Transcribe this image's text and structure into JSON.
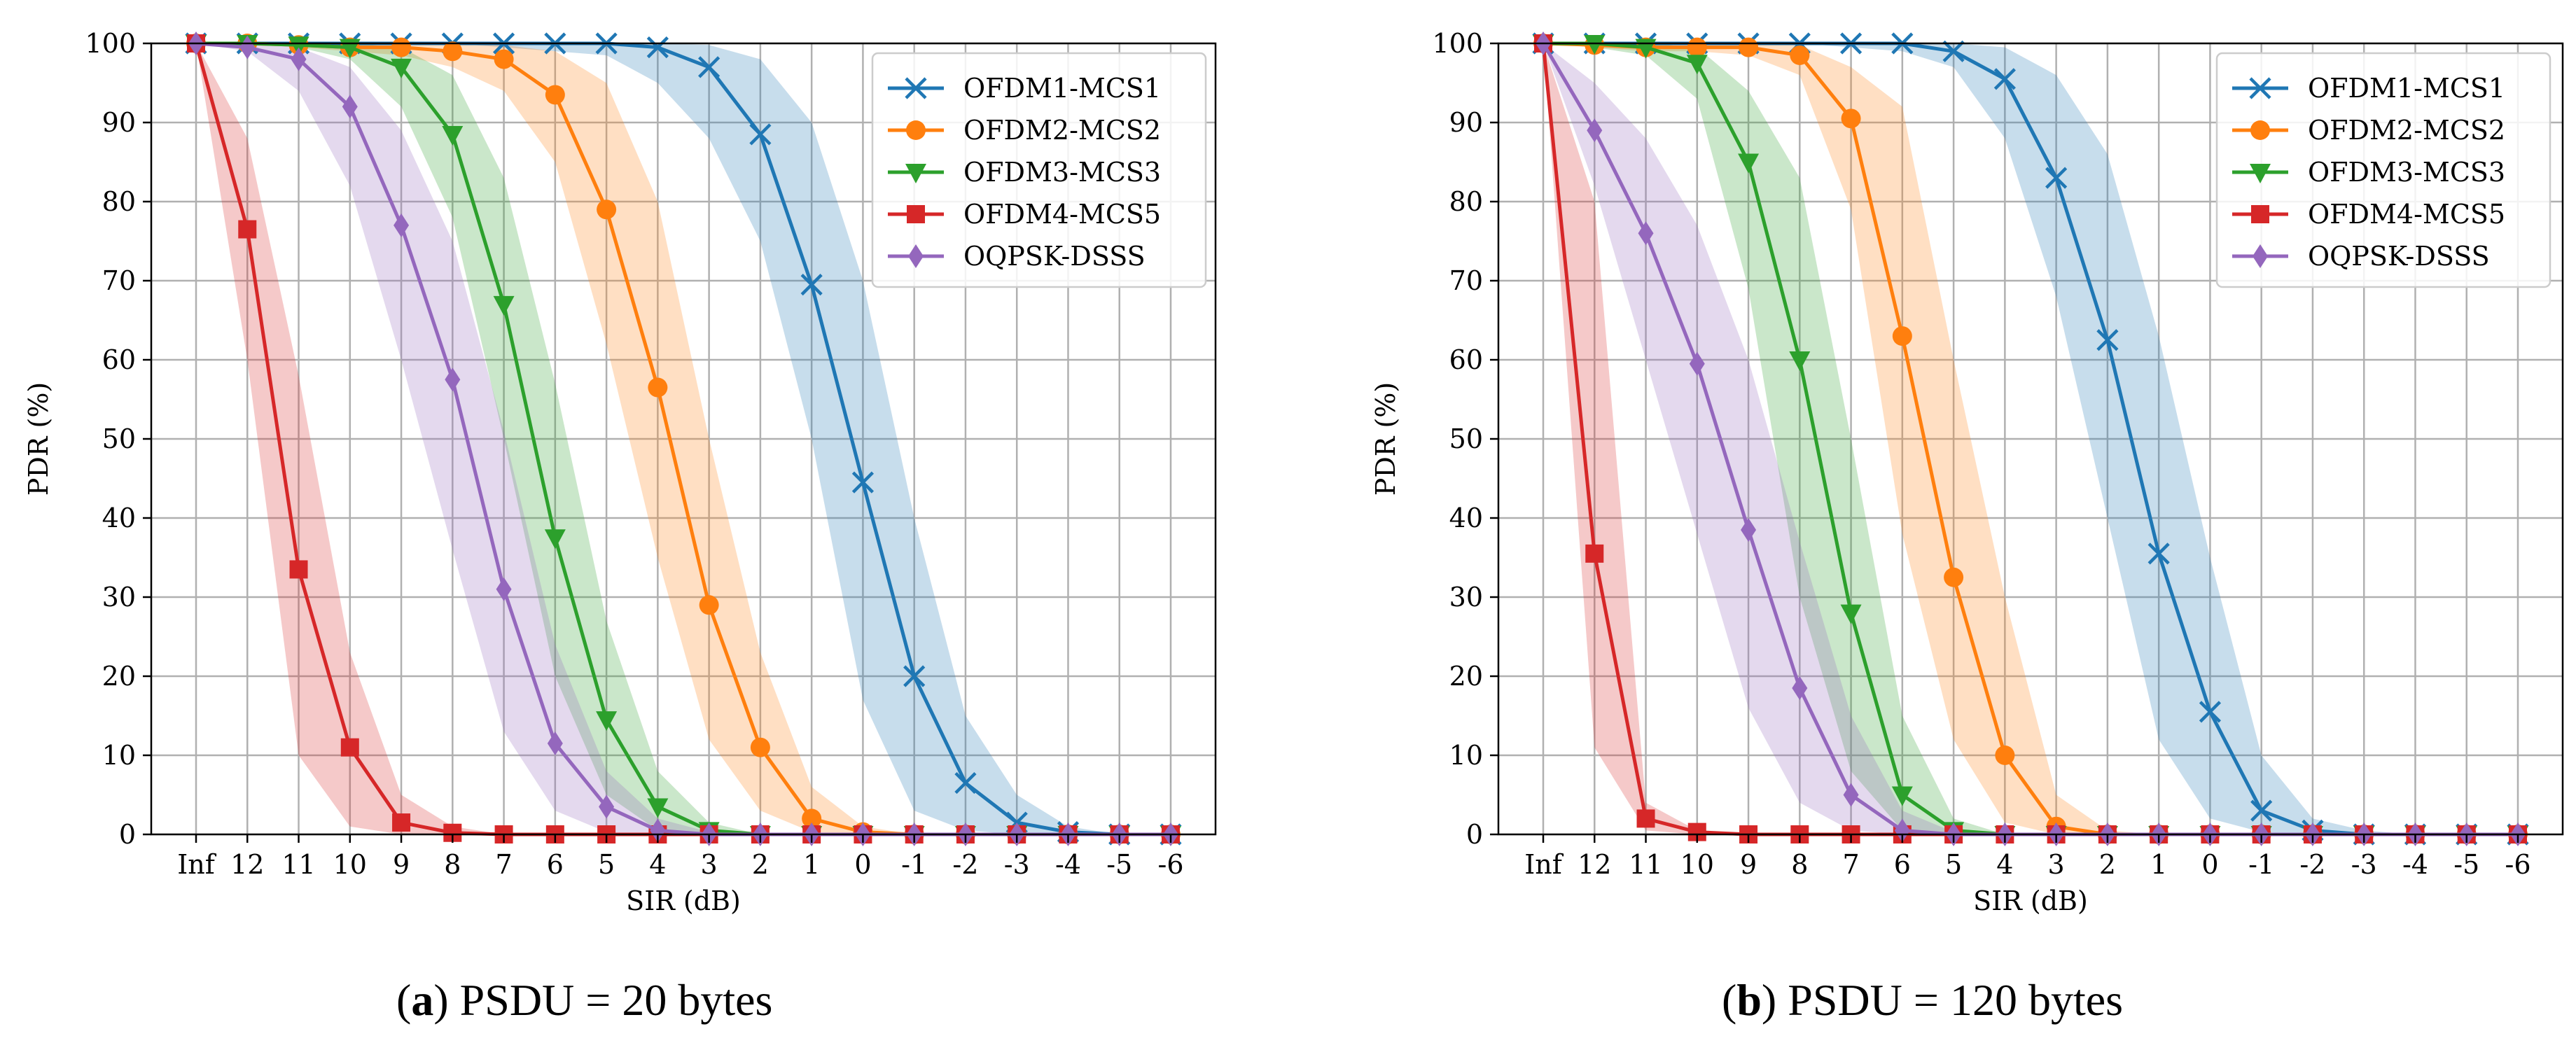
{
  "captions": [
    {
      "letter": "a",
      "text": " PSDU = 20 bytes"
    },
    {
      "letter": "b",
      "text": " PSDU = 120 bytes"
    }
  ],
  "colors": {
    "OFDM1-MCS1": "#1f77b4",
    "OFDM2-MCS2": "#ff7f0e",
    "OFDM3-MCS3": "#2ca02c",
    "OFDM4-MCS5": "#d62728",
    "OQPSK-DSSS": "#9467bd"
  },
  "chart_data": [
    {
      "type": "line",
      "xlabel": "SIR (dB)",
      "ylabel": "PDR (%)",
      "ylim": [
        0,
        100
      ],
      "yticks": [
        0,
        10,
        20,
        30,
        40,
        50,
        60,
        70,
        80,
        90,
        100
      ],
      "categories": [
        "Inf",
        "12",
        "11",
        "10",
        "9",
        "8",
        "7",
        "6",
        "5",
        "4",
        "3",
        "2",
        "1",
        "0",
        "-1",
        "-2",
        "-3",
        "-4",
        "-5",
        "-6"
      ],
      "grid": true,
      "legend_position": "top-right",
      "series": [
        {
          "name": "OFDM1-MCS1",
          "marker": "x",
          "values": [
            100,
            100,
            100,
            100,
            100,
            100,
            100,
            100,
            100,
            99.5,
            97,
            88.5,
            69.5,
            44.5,
            20,
            6.5,
            1.5,
            0.3,
            0,
            0
          ],
          "lower": [
            100,
            100,
            100,
            100,
            100,
            100,
            99.5,
            99,
            98.5,
            95,
            88,
            75,
            50,
            17,
            3,
            0.5,
            0,
            0,
            0,
            0
          ],
          "upper": [
            100,
            100,
            100,
            100,
            100,
            100,
            100,
            100,
            100,
            100,
            99.8,
            98,
            90,
            70,
            40,
            15,
            5,
            1,
            0,
            0
          ]
        },
        {
          "name": "OFDM2-MCS2",
          "marker": "o",
          "values": [
            100,
            100,
            99.8,
            99.5,
            99.5,
            99,
            98,
            93.5,
            79,
            56.5,
            29,
            11,
            2,
            0.3,
            0,
            0,
            0,
            0,
            0,
            0
          ],
          "lower": [
            100,
            100,
            99.5,
            99,
            98.5,
            97,
            94,
            85,
            62,
            35,
            12,
            3,
            0.3,
            0,
            0,
            0,
            0,
            0,
            0,
            0
          ],
          "upper": [
            100,
            100,
            100,
            100,
            100,
            100,
            99.8,
            99,
            95,
            80,
            50,
            23,
            6,
            1,
            0,
            0,
            0,
            0,
            0,
            0
          ]
        },
        {
          "name": "OFDM3-MCS3",
          "marker": "v",
          "values": [
            100,
            100,
            99.8,
            99.5,
            97,
            88.5,
            67,
            37.5,
            14.5,
            3.5,
            0.5,
            0,
            0,
            0,
            0,
            0,
            0,
            0,
            0,
            0
          ],
          "lower": [
            100,
            100,
            99.5,
            98,
            92,
            78,
            50,
            20,
            5,
            0.5,
            0,
            0,
            0,
            0,
            0,
            0,
            0,
            0,
            0,
            0
          ],
          "upper": [
            100,
            100,
            100,
            100,
            99.5,
            96,
            83,
            57,
            27,
            8,
            1.5,
            0,
            0,
            0,
            0,
            0,
            0,
            0,
            0,
            0
          ]
        },
        {
          "name": "OFDM4-MCS5",
          "marker": "s",
          "values": [
            100,
            76.5,
            33.5,
            11,
            1.5,
            0.2,
            0,
            0,
            0,
            0,
            0,
            0,
            0,
            0,
            0,
            0,
            0,
            0,
            0,
            0
          ],
          "lower": [
            100,
            60,
            10,
            1,
            0,
            0,
            0,
            0,
            0,
            0,
            0,
            0,
            0,
            0,
            0,
            0,
            0,
            0,
            0,
            0
          ],
          "upper": [
            100,
            88,
            58,
            23,
            5,
            1,
            0,
            0,
            0,
            0,
            0,
            0,
            0,
            0,
            0,
            0,
            0,
            0,
            0,
            0
          ]
        },
        {
          "name": "OQPSK-DSSS",
          "marker": "d",
          "values": [
            100,
            99.5,
            98,
            92,
            77,
            57.5,
            31,
            11.5,
            3.5,
            0.5,
            0,
            0,
            0,
            0,
            0,
            0,
            0,
            0,
            0,
            0
          ],
          "lower": [
            100,
            99,
            94,
            82,
            60,
            36,
            13,
            3,
            0.3,
            0,
            0,
            0,
            0,
            0,
            0,
            0,
            0,
            0,
            0,
            0
          ],
          "upper": [
            100,
            100,
            99.5,
            97,
            89,
            75,
            51,
            24,
            8,
            2,
            0.3,
            0,
            0,
            0,
            0,
            0,
            0,
            0,
            0,
            0
          ]
        }
      ]
    },
    {
      "type": "line",
      "xlabel": "SIR (dB)",
      "ylabel": "PDR (%)",
      "ylim": [
        0,
        100
      ],
      "yticks": [
        0,
        10,
        20,
        30,
        40,
        50,
        60,
        70,
        80,
        90,
        100
      ],
      "categories": [
        "Inf",
        "12",
        "11",
        "10",
        "9",
        "8",
        "7",
        "6",
        "5",
        "4",
        "3",
        "2",
        "1",
        "0",
        "-1",
        "-2",
        "-3",
        "-4",
        "-5",
        "-6"
      ],
      "grid": true,
      "legend_position": "top-right",
      "series": [
        {
          "name": "OFDM1-MCS1",
          "marker": "x",
          "values": [
            100,
            100,
            100,
            100,
            100,
            100,
            100,
            100,
            99,
            95.5,
            83,
            62.5,
            35.5,
            15.5,
            3,
            0.5,
            0,
            0,
            0,
            0
          ],
          "lower": [
            100,
            100,
            100,
            100,
            100,
            100,
            99.5,
            99,
            97,
            88,
            68,
            40,
            12,
            2,
            0.3,
            0,
            0,
            0,
            0,
            0
          ],
          "upper": [
            100,
            100,
            100,
            100,
            100,
            100,
            100,
            100,
            100,
            99.5,
            96,
            86,
            63,
            35,
            10,
            2,
            0.5,
            0,
            0,
            0
          ]
        },
        {
          "name": "OFDM2-MCS2",
          "marker": "o",
          "values": [
            100,
            99.8,
            99.5,
            99.5,
            99.5,
            98.5,
            90.5,
            63,
            32.5,
            10,
            1,
            0,
            0,
            0,
            0,
            0,
            0,
            0,
            0,
            0
          ],
          "lower": [
            100,
            99.5,
            99,
            99,
            98.5,
            96,
            79,
            38,
            12,
            1.5,
            0,
            0,
            0,
            0,
            0,
            0,
            0,
            0,
            0,
            0
          ],
          "upper": [
            100,
            100,
            100,
            100,
            100,
            99.8,
            97,
            92,
            60,
            30,
            5,
            0.5,
            0,
            0,
            0,
            0,
            0,
            0,
            0,
            0
          ]
        },
        {
          "name": "OFDM3-MCS3",
          "marker": "v",
          "values": [
            100,
            100,
            99.5,
            97.5,
            85,
            60,
            28,
            5,
            0.5,
            0,
            0,
            0,
            0,
            0,
            0,
            0,
            0,
            0,
            0,
            0
          ],
          "lower": [
            100,
            99.5,
            98.5,
            93,
            69,
            30,
            8,
            0.5,
            0,
            0,
            0,
            0,
            0,
            0,
            0,
            0,
            0,
            0,
            0,
            0
          ],
          "upper": [
            100,
            100,
            100,
            99.5,
            94,
            83,
            50,
            15,
            2,
            0,
            0,
            0,
            0,
            0,
            0,
            0,
            0,
            0,
            0,
            0
          ]
        },
        {
          "name": "OFDM4-MCS5",
          "marker": "s",
          "values": [
            100,
            35.5,
            2,
            0.3,
            0,
            0,
            0,
            0,
            0,
            0,
            0,
            0,
            0,
            0,
            0,
            0,
            0,
            0,
            0,
            0
          ],
          "lower": [
            100,
            11,
            0.5,
            0,
            0,
            0,
            0,
            0,
            0,
            0,
            0,
            0,
            0,
            0,
            0,
            0,
            0,
            0,
            0,
            0
          ],
          "upper": [
            100,
            80,
            4,
            0.5,
            0,
            0,
            0,
            0,
            0,
            0,
            0,
            0,
            0,
            0,
            0,
            0,
            0,
            0,
            0,
            0
          ]
        },
        {
          "name": "OQPSK-DSSS",
          "marker": "d",
          "values": [
            100,
            89,
            76,
            59.5,
            38.5,
            18.5,
            5,
            0.5,
            0,
            0,
            0,
            0,
            0,
            0,
            0,
            0,
            0,
            0,
            0,
            0
          ],
          "lower": [
            100,
            82,
            60,
            38,
            16,
            4,
            0.5,
            0,
            0,
            0,
            0,
            0,
            0,
            0,
            0,
            0,
            0,
            0,
            0,
            0
          ],
          "upper": [
            100,
            95,
            88,
            77,
            60,
            37,
            15,
            3,
            0.3,
            0,
            0,
            0,
            0,
            0,
            0,
            0,
            0,
            0,
            0,
            0
          ]
        }
      ]
    }
  ]
}
